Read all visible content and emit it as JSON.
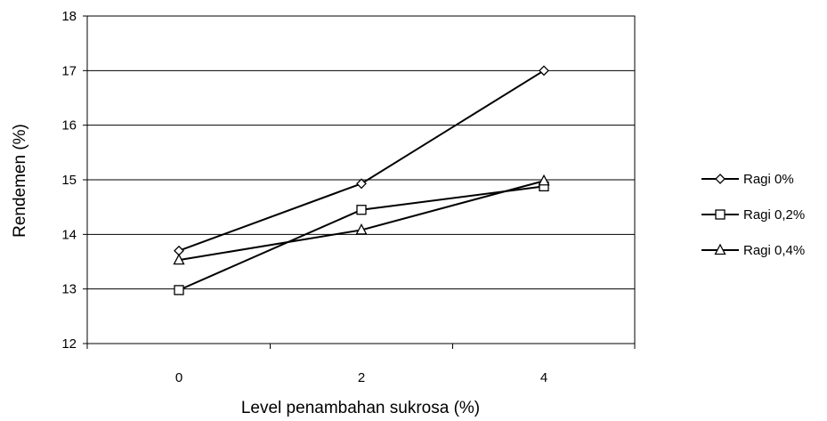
{
  "chart_data": {
    "type": "line",
    "title": "",
    "xlabel": "Level penambahan sukrosa (%)",
    "ylabel": "Rendemen (%)",
    "x": [
      0,
      2,
      4
    ],
    "x_tick_labels": [
      "0",
      "2",
      "4"
    ],
    "ylim": [
      12,
      18
    ],
    "y_ticks": [
      12,
      13,
      14,
      15,
      16,
      17,
      18
    ],
    "grid": "horizontal",
    "legend_position": "right",
    "series": [
      {
        "name": "Ragi 0%",
        "marker": "diamond",
        "values": [
          13.7,
          14.93,
          17.0
        ]
      },
      {
        "name": "Ragi 0,2%",
        "marker": "square",
        "values": [
          12.98,
          14.45,
          14.88
        ]
      },
      {
        "name": "Ragi 0,4%",
        "marker": "triangle",
        "values": [
          13.53,
          14.08,
          14.98
        ]
      }
    ],
    "colors": {
      "line": "#000000",
      "grid": "#000000",
      "marker_fill": "#ffffff"
    }
  }
}
